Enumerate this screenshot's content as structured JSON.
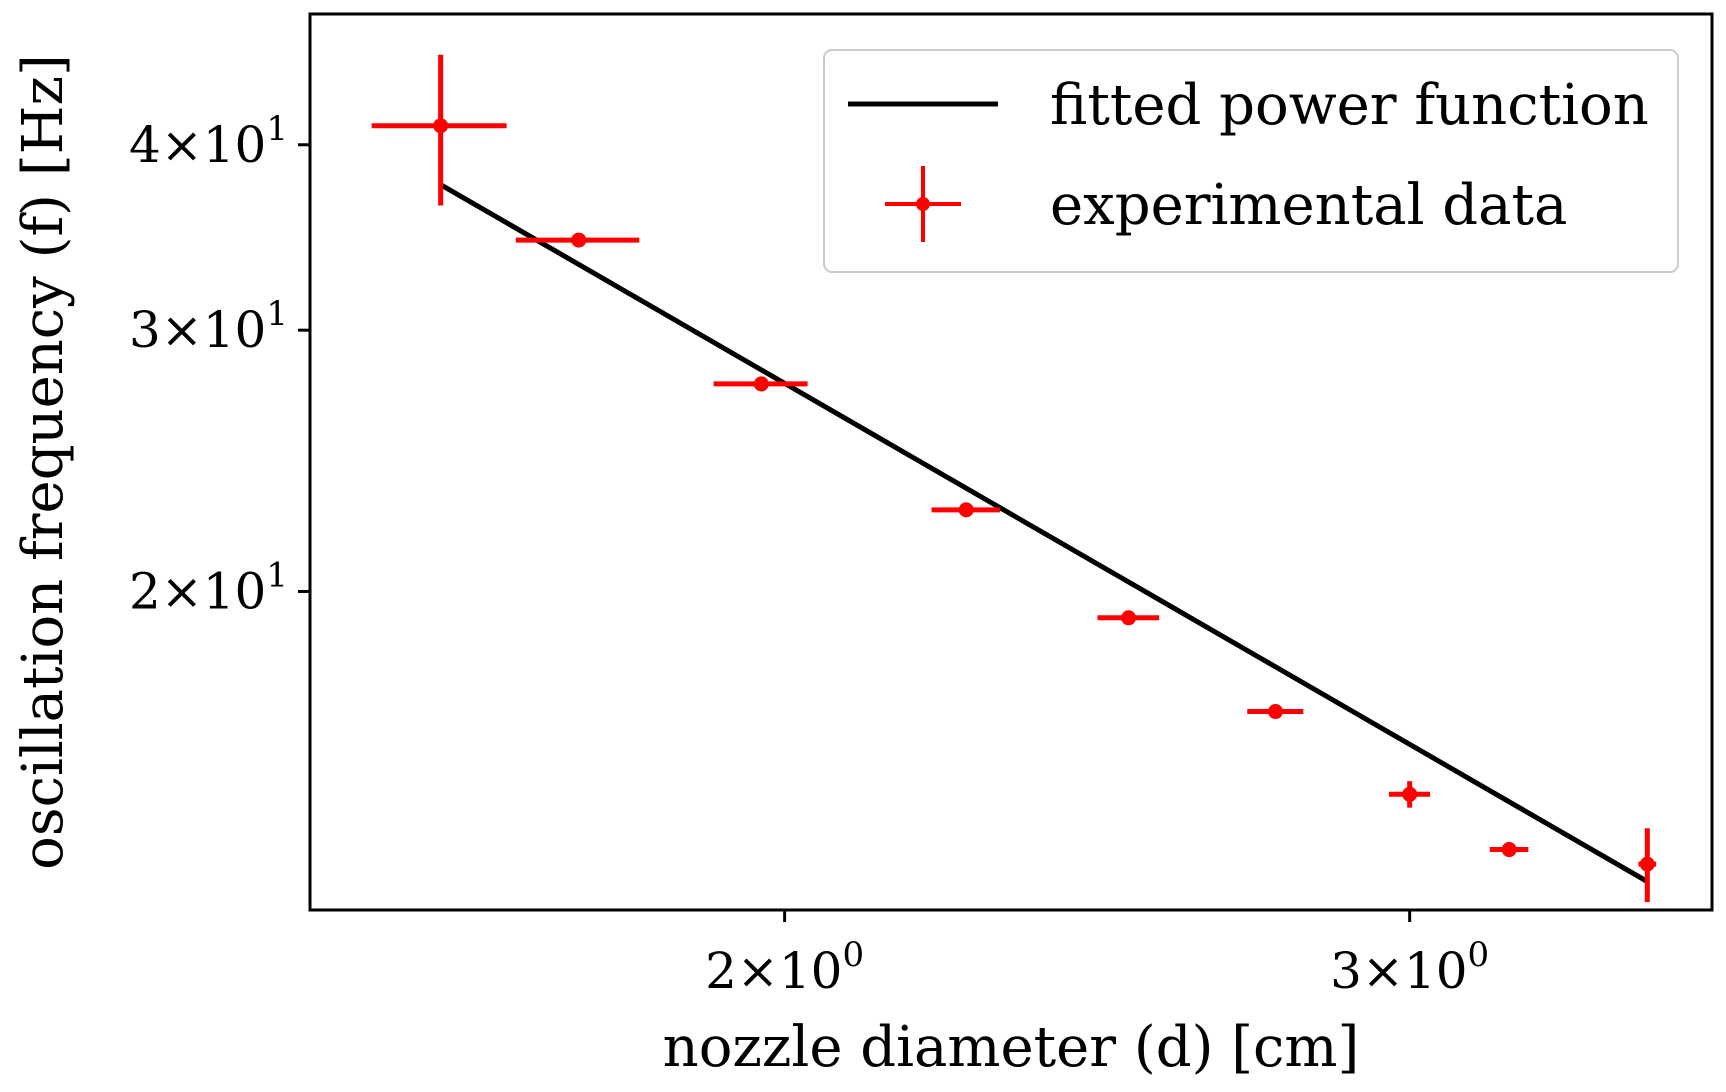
{
  "chart_data": {
    "type": "scatter",
    "xscale": "log",
    "yscale": "log",
    "xlabel": "nozzle diameter (d) [cm]",
    "ylabel": "oscillation frequency (f) [Hz]",
    "xlim": [
      1.47,
      3.65
    ],
    "ylim": [
      12.2,
      49.0
    ],
    "xticks": [
      {
        "value": 2,
        "label": "2×10",
        "exp": "0"
      },
      {
        "value": 3,
        "label": "3×10",
        "exp": "0"
      }
    ],
    "yticks": [
      {
        "value": 20,
        "label": "2×10",
        "exp": "1"
      },
      {
        "value": 30,
        "label": "3×10",
        "exp": "1"
      },
      {
        "value": 40,
        "label": "4×10",
        "exp": "1"
      }
    ],
    "legend": {
      "location": "upper right",
      "entries": [
        {
          "label": "fitted power function",
          "kind": "line",
          "color": "#000000"
        },
        {
          "label": "experimental data",
          "kind": "errorbar",
          "color": "#ff0000"
        }
      ]
    },
    "series": [
      {
        "name": "fitted power function",
        "kind": "line",
        "color": "#000000",
        "x": [
          1.6,
          3.5
        ],
        "y": [
          37.6,
          12.75
        ]
      },
      {
        "name": "experimental data",
        "kind": "errorbar",
        "color": "#ff0000",
        "points": [
          {
            "x": 1.6,
            "y": 41.2,
            "xerr": 0.07,
            "yerr": 4.8
          },
          {
            "x": 1.75,
            "y": 34.5,
            "xerr": 0.07,
            "yerr": 0.3
          },
          {
            "x": 1.97,
            "y": 27.6,
            "xerr": 0.06,
            "yerr": 0.3
          },
          {
            "x": 2.25,
            "y": 22.7,
            "xerr": 0.05,
            "yerr": 0.2
          },
          {
            "x": 2.5,
            "y": 19.2,
            "xerr": 0.05,
            "yerr": 0.2
          },
          {
            "x": 2.75,
            "y": 16.6,
            "xerr": 0.05,
            "yerr": 0.15
          },
          {
            "x": 3.0,
            "y": 14.6,
            "xerr": 0.04,
            "yerr": 0.3
          },
          {
            "x": 3.2,
            "y": 13.4,
            "xerr": 0.04,
            "yerr": 0.15
          },
          {
            "x": 3.5,
            "y": 13.1,
            "xerr": 0.02,
            "yerr": 0.75
          }
        ]
      }
    ]
  }
}
